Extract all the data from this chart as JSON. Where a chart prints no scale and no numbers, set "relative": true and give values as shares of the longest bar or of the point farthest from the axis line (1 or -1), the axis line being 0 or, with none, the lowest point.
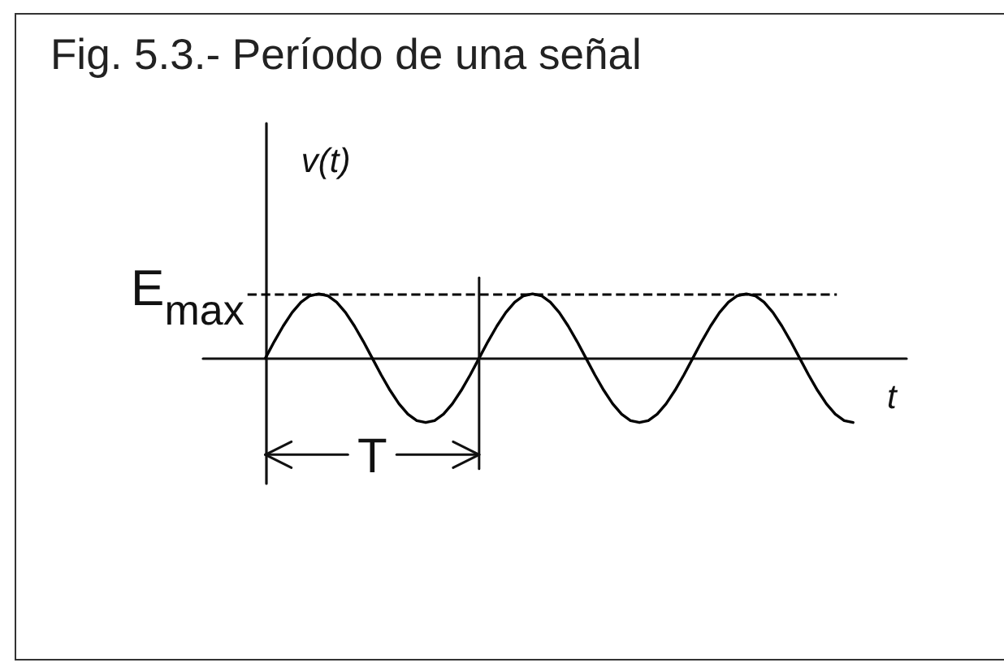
{
  "chart_data": {
    "type": "line",
    "title": "Fig. 5.3.- Período de una señal",
    "xlabel": "t",
    "ylabel": "v(t)",
    "categories": [
      null,
      null,
      null,
      null,
      null,
      null,
      null,
      null,
      null,
      null,
      null,
      null,
      null,
      null,
      null,
      null,
      null,
      null,
      null,
      null,
      null,
      null,
      null,
      null,
      null,
      null,
      null,
      null,
      null,
      null,
      null,
      null,
      null,
      null,
      null,
      null,
      null,
      null,
      null,
      null,
      null,
      null,
      null,
      null,
      null,
      null,
      null,
      null,
      null,
      null,
      null,
      null,
      null,
      null,
      null,
      null,
      null,
      null,
      null,
      null,
      null,
      null,
      null,
      null,
      null,
      null,
      null
    ],
    "series": [
      {
        "color": "#000000",
        "values": [
          0,
          0.26,
          0.5,
          0.71,
          0.87,
          0.97,
          1,
          0.97,
          0.87,
          0.71,
          0.5,
          0.26,
          0,
          -0.26,
          -0.5,
          -0.71,
          -0.87,
          -0.97,
          -1,
          -0.97,
          -0.87,
          -0.71,
          -0.5,
          -0.26,
          0,
          0.26,
          0.5,
          0.71,
          0.87,
          0.97,
          1,
          0.97,
          0.87,
          0.71,
          0.5,
          0.26,
          0,
          -0.26,
          -0.5,
          -0.71,
          -0.87,
          -0.97,
          -1,
          -0.97,
          -0.87,
          -0.71,
          -0.5,
          -0.26,
          0,
          0.26,
          0.5,
          0.71,
          0.87,
          0.97,
          1,
          0.97,
          0.87,
          0.71,
          0.5,
          0.26,
          0,
          -0.26,
          -0.5,
          -0.71,
          -0.87,
          -0.97,
          -1
        ]
      }
    ],
    "relative": true,
    "marker": "none",
    "line_style": "solid",
    "ref_lines": [
      {
        "axis": "y",
        "value": 1,
        "label": "E$_{max}$",
        "line_style": "dashed",
        "color": "#000000"
      }
    ],
    "annotations": [
      "T"
    ]
  }
}
